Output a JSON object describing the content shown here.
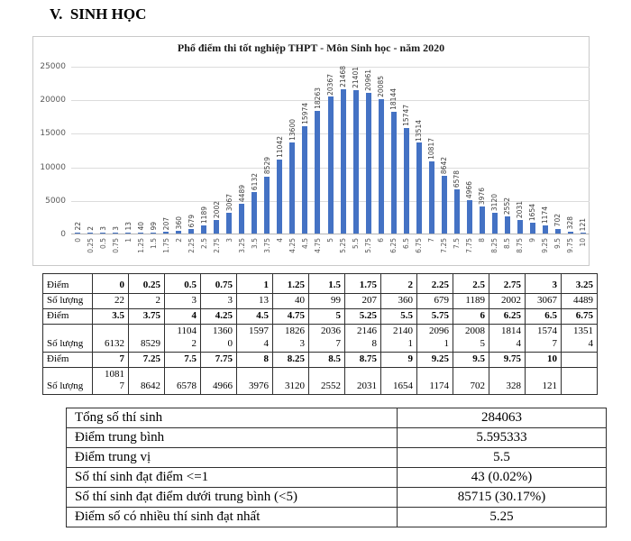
{
  "page_title": "V.  SINH HỌC",
  "chart_data": {
    "type": "bar",
    "title": "Phổ điểm thi tốt nghiệp THPT - Môn Sinh học - năm 2020",
    "categories": [
      "0",
      "0.25",
      "0.5",
      "0.75",
      "1",
      "1.25",
      "1.5",
      "1.75",
      "2",
      "2.25",
      "2.5",
      "2.75",
      "3",
      "3.25",
      "3.5",
      "3.75",
      "4",
      "4.25",
      "4.5",
      "4.75",
      "5",
      "5.25",
      "5.5",
      "5.75",
      "6",
      "6.25",
      "6.5",
      "6.75",
      "7",
      "7.25",
      "7.5",
      "7.75",
      "8",
      "8.25",
      "8.5",
      "8.75",
      "9",
      "9.25",
      "9.5",
      "9.75",
      "10"
    ],
    "values": [
      22,
      2,
      3,
      3,
      13,
      40,
      99,
      207,
      360,
      679,
      1189,
      2002,
      3067,
      4489,
      6132,
      8529,
      11042,
      13600,
      15974,
      18263,
      20367,
      21468,
      21401,
      20961,
      20085,
      18144,
      15747,
      13514,
      10817,
      8642,
      6578,
      4966,
      3976,
      3120,
      2552,
      2031,
      1654,
      1174,
      702,
      328,
      121
    ],
    "xlabel": "",
    "ylabel": "",
    "ylim": [
      0,
      25000
    ],
    "yticks": [
      0,
      5000,
      10000,
      15000,
      20000,
      25000
    ],
    "grid": true,
    "legend": false,
    "data_labels": true,
    "bar_color": "#4472C4"
  },
  "score_table": {
    "column_count": 14,
    "rows": [
      {
        "label": "Điểm",
        "type": "score",
        "values": [
          "0",
          "0.25",
          "0.5",
          "0.75",
          "1",
          "1.25",
          "1.5",
          "1.75",
          "2",
          "2.25",
          "2.5",
          "2.75",
          "3",
          "3.25"
        ]
      },
      {
        "label": "Số lượng",
        "type": "count",
        "values": [
          "22",
          "2",
          "3",
          "3",
          "13",
          "40",
          "99",
          "207",
          "360",
          "679",
          "1189",
          "2002",
          "3067",
          "4489"
        ]
      },
      {
        "label": "Điểm",
        "type": "score",
        "values": [
          "3.5",
          "3.75",
          "4",
          "4.25",
          "4.5",
          "4.75",
          "5",
          "5.25",
          "5.5",
          "5.75",
          "6",
          "6.25",
          "6.5",
          "6.75"
        ]
      },
      {
        "label": "Số lượng",
        "type": "count",
        "values": [
          "6132",
          "8529",
          "11042",
          "13600",
          "15974",
          "18263",
          "20367",
          "21468",
          "21401",
          "20961",
          "20085",
          "18144",
          "15747",
          "13514"
        ]
      },
      {
        "label": "Điểm",
        "type": "score",
        "values": [
          "7",
          "7.25",
          "7.5",
          "7.75",
          "8",
          "8.25",
          "8.5",
          "8.75",
          "9",
          "9.25",
          "9.5",
          "9.75",
          "10",
          ""
        ]
      },
      {
        "label": "Số lượng",
        "type": "count",
        "values": [
          "10817",
          "8642",
          "6578",
          "4966",
          "3976",
          "3120",
          "2552",
          "2031",
          "1654",
          "1174",
          "702",
          "328",
          "121",
          ""
        ]
      }
    ]
  },
  "summary_table": {
    "rows": [
      {
        "label": "Tổng số thí sinh",
        "value": "284063"
      },
      {
        "label": "Điểm trung bình",
        "value": "5.595333"
      },
      {
        "label": "Điểm trung vị",
        "value": "5.5"
      },
      {
        "label": "Số thí sinh đạt điểm <=1",
        "value": "43 (0.02%)"
      },
      {
        "label": "Số thí sinh đạt điểm dưới trung bình (<5)",
        "value": "85715 (30.17%)"
      },
      {
        "label": "Điểm số có nhiều thí sinh đạt nhất",
        "value": "5.25"
      }
    ]
  }
}
